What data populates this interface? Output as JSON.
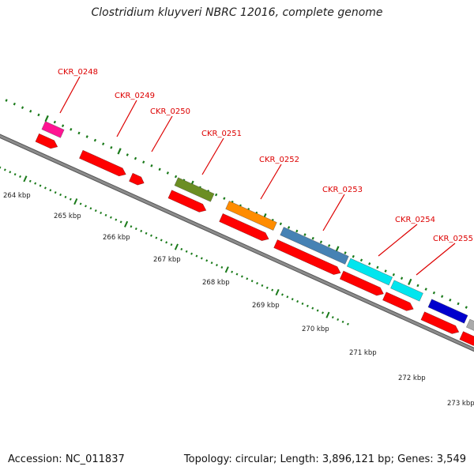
{
  "title": "Clostridium kluyveri NBRC 12016, complete genome",
  "footer": {
    "accession": "Accession: NC_011837",
    "stats": "Topology: circular; Length: 3,896,121 bp; Genes: 3,549"
  },
  "colors": {
    "backbone": "#8c8c8c",
    "cds_strand": "#ff0000",
    "gene_label": "#dd0000",
    "tick": "#1a7a1a",
    "axis_label": "#222222"
  },
  "scale": {
    "unit": "kbp",
    "labels": [
      "264 kbp",
      "265 kbp",
      "266 kbp",
      "267 kbp",
      "268 kbp",
      "269 kbp",
      "270 kbp",
      "271 kbp",
      "272 kbp",
      "273 kbp"
    ]
  },
  "genes": [
    {
      "name": "CKR_0248",
      "color": "#ff1493"
    },
    {
      "name": "CKR_0249",
      "color": "#ff0000"
    },
    {
      "name": "CKR_0250",
      "color": "#ff0000"
    },
    {
      "name": "CKR_0251",
      "color": "#6b8e23"
    },
    {
      "name": "CKR_0252",
      "color": "#ff8c00"
    },
    {
      "name": "CKR_0253",
      "color": "#4682b4"
    },
    {
      "name": "CKR_0254",
      "color": "#00e5ee"
    },
    {
      "name": "CKR_0255",
      "color": "#00e5ee"
    }
  ],
  "unlabeled_features": [
    {
      "name": "blue feature",
      "color": "#0000cd"
    },
    {
      "name": "grey feature",
      "color": "#aaaaaa"
    }
  ]
}
